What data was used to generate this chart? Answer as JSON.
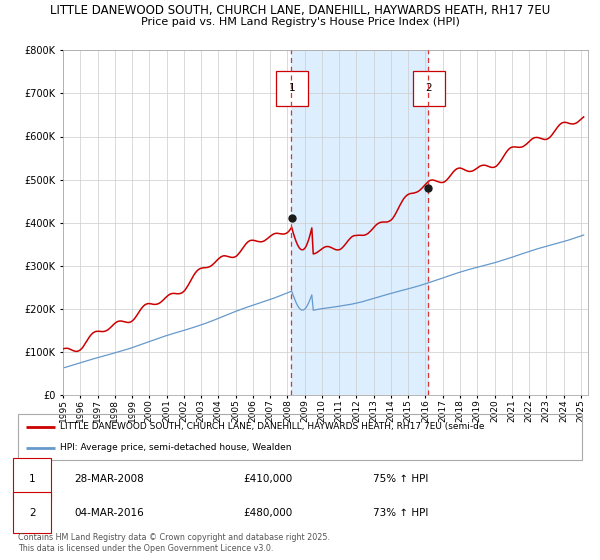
{
  "title1": "LITTLE DANEWOOD SOUTH, CHURCH LANE, DANEHILL, HAYWARDS HEATH, RH17 7EU",
  "title2": "Price paid vs. HM Land Registry's House Price Index (HPI)",
  "legend1": "LITTLE DANEWOOD SOUTH, CHURCH LANE, DANEHILL, HAYWARDS HEATH, RH17 7EU (semi-de",
  "legend2": "HPI: Average price, semi-detached house, Wealden",
  "marker1_date": "28-MAR-2008",
  "marker1_price": 410000,
  "marker1_pct": "75% ↑ HPI",
  "marker2_date": "04-MAR-2016",
  "marker2_price": 480000,
  "marker2_pct": "73% ↑ HPI",
  "footer": "Contains HM Land Registry data © Crown copyright and database right 2025.\nThis data is licensed under the Open Government Licence v3.0.",
  "red_color": "#cc0000",
  "blue_color": "#6699cc",
  "shading_color": "#ddeeff",
  "dashed_color": "#dd3333",
  "ylim_max": 800000,
  "ylim_min": 0
}
